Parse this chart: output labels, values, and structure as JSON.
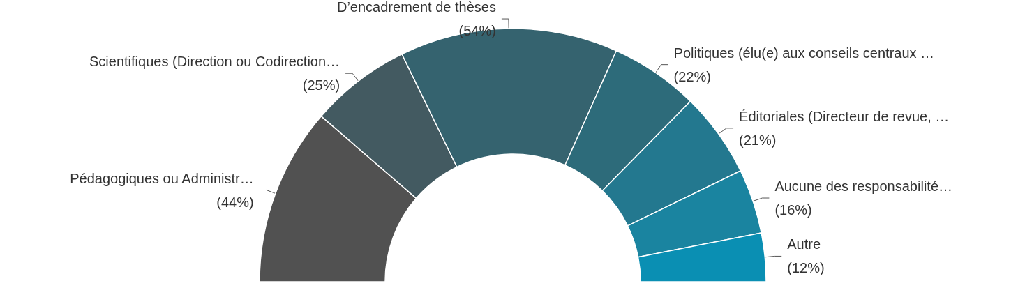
{
  "chart_data": {
    "type": "donut",
    "categories": [
      "Pédagogiques ou Administr…",
      "Scientifiques (Direction ou Codirection…",
      "D’encadrement de thèses",
      "Politiques (élu(e) aux conseils centraux …",
      "Éditoriales (Directeur de revue, …",
      "Aucune des responsabilité…",
      "Autre"
    ],
    "values": [
      44,
      25,
      54,
      22,
      21,
      16,
      12
    ],
    "value_labels": [
      "(44%)",
      "(25%)",
      "(54%)",
      "(22%)",
      "(21%)",
      "(16%)",
      "(12%)"
    ],
    "colors": [
      "#515151",
      "#435a61",
      "#35636f",
      "#2d6b7a",
      "#23788f",
      "#1a84a0",
      "#0a8fb3"
    ]
  }
}
